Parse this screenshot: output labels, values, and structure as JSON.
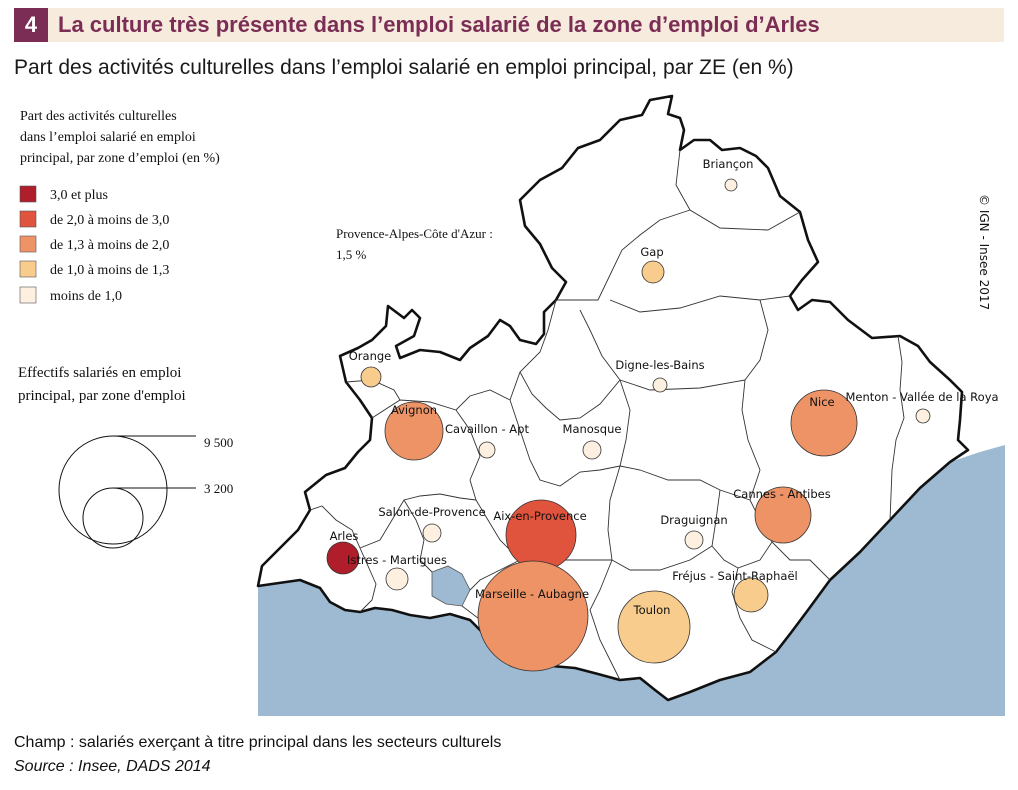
{
  "header": {
    "number": "4",
    "title": "La culture très présente dans l’emploi salarié de la zone d’emploi d’Arles"
  },
  "subtitle": "Part des activités culturelles dans l’emploi salarié en emploi principal, par ZE (en %)",
  "legend_share": {
    "title_lines": [
      "Part des activités culturelles",
      "dans l’emploi salarié en emploi",
      "principal, par zone d’emploi (en %)"
    ],
    "classes": [
      {
        "label": "3,0 et plus",
        "color": "#b01e2c"
      },
      {
        "label": "de 2,0 à moins de 3,0",
        "color": "#e0533d"
      },
      {
        "label": "de 1,3 à moins de 2,0",
        "color": "#ee9366"
      },
      {
        "label": "de 1,0  à moins de 1,3",
        "color": "#f8cc8c"
      },
      {
        "label": "moins de 1,0",
        "color": "#fdf0e0"
      }
    ]
  },
  "legend_size": {
    "title_lines": [
      "Effectifs salariés en emploi",
      "principal, par zone d'emploi"
    ],
    "values": [
      "9 500",
      "3 200"
    ]
  },
  "region_note": {
    "lines": [
      "Provence-Alpes-Côte d'Azur :",
      "1,5 %"
    ]
  },
  "credit": "© IGN - Insee 2017",
  "zones": [
    {
      "name": "Briançon",
      "share_class": 4
    },
    {
      "name": "Gap",
      "share_class": 3
    },
    {
      "name": "Orange",
      "share_class": 3
    },
    {
      "name": "Digne-les-Bains",
      "share_class": 4
    },
    {
      "name": "Avignon",
      "share_class": 2
    },
    {
      "name": "Cavaillon - Apt",
      "share_class": 4
    },
    {
      "name": "Manosque",
      "share_class": 4
    },
    {
      "name": "Nice",
      "share_class": 2
    },
    {
      "name": "Menton - Vallée de la Roya",
      "share_class": 4
    },
    {
      "name": "Salon-de-Provence",
      "share_class": 4
    },
    {
      "name": "Aix-en-Provence",
      "share_class": 1
    },
    {
      "name": "Draguignan",
      "share_class": 4
    },
    {
      "name": "Cannes - Antibes",
      "share_class": 2
    },
    {
      "name": "Arles",
      "share_class": 0
    },
    {
      "name": "Istres - Martigues",
      "share_class": 4
    },
    {
      "name": "Fréjus - Saint-Raphaël",
      "share_class": 3
    },
    {
      "name": "Marseille - Aubagne",
      "share_class": 2
    },
    {
      "name": "Toulon",
      "share_class": 3
    }
  ],
  "footer": {
    "champ": "Champ : salariés exerçant à titre principal dans les secteurs culturels",
    "source": "Source : Insee, DADS 2014"
  },
  "colors": {
    "sea": "#9dbad2",
    "land": "#ffffff",
    "border": "#111111",
    "header_bg": "#f6ebdc",
    "accent": "#7b2d55"
  }
}
